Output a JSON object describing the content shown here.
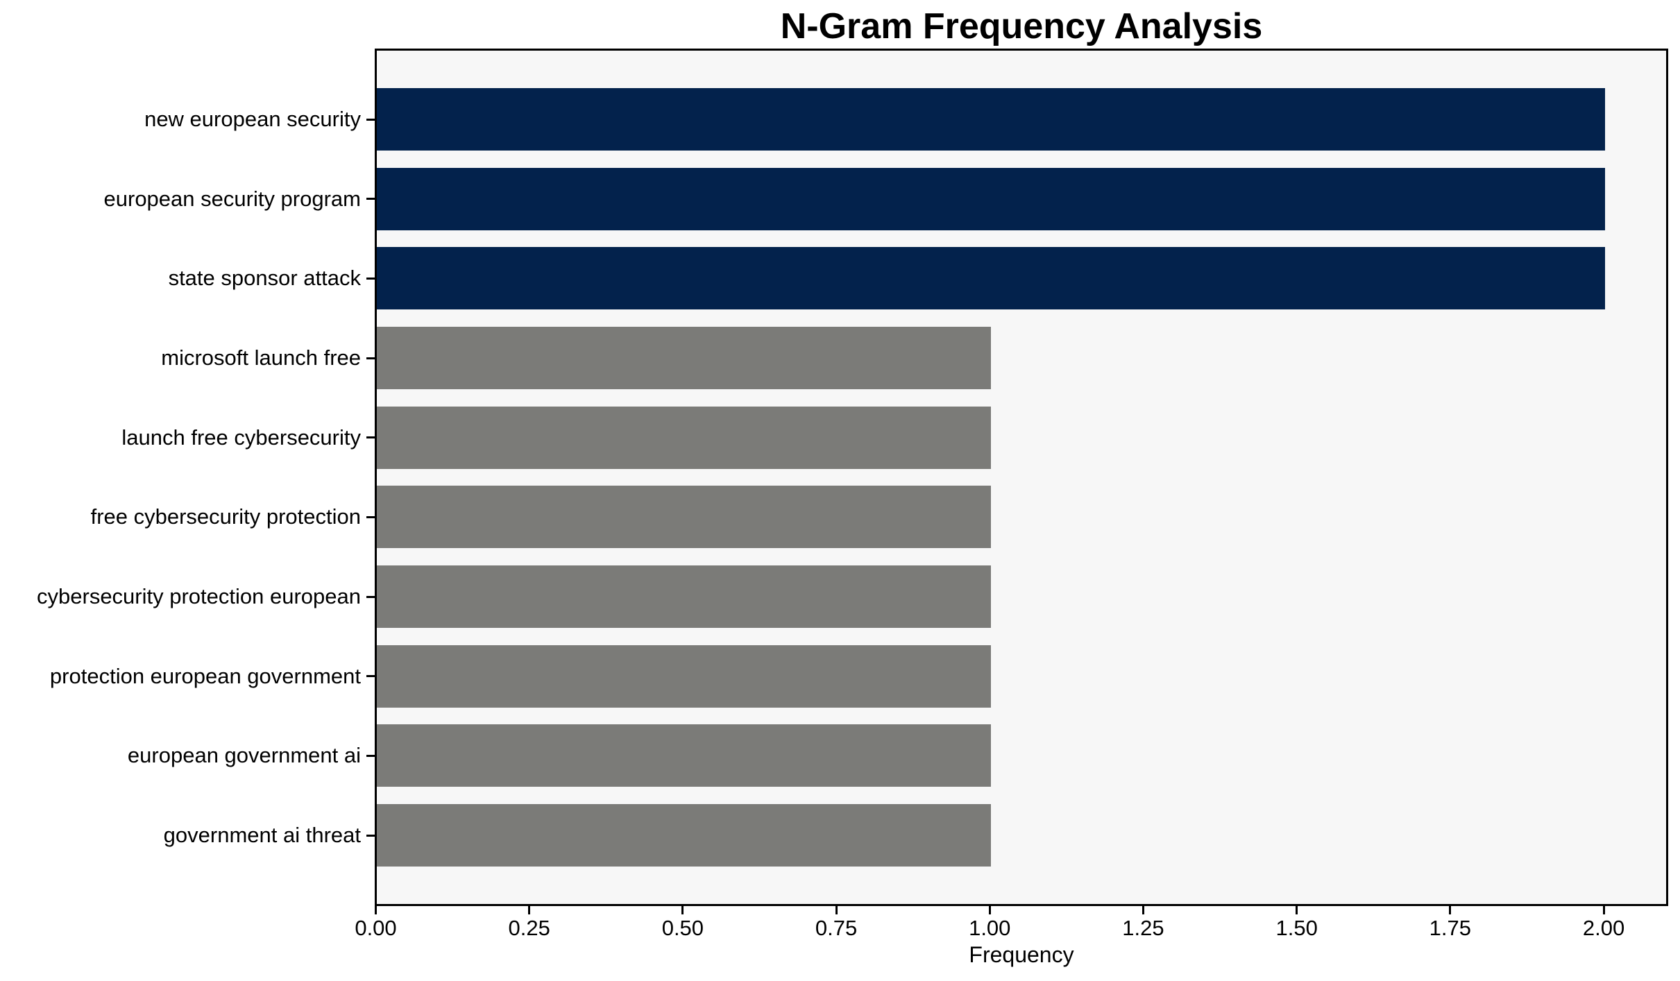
{
  "chart_data": {
    "type": "bar",
    "orientation": "horizontal",
    "title": "N-Gram Frequency Analysis",
    "xlabel": "Frequency",
    "ylabel": "",
    "categories": [
      "new european security",
      "european security program",
      "state sponsor attack",
      "microsoft launch free",
      "launch free cybersecurity",
      "free cybersecurity protection",
      "cybersecurity protection european",
      "protection european government",
      "european government ai",
      "government ai threat"
    ],
    "values": [
      2,
      2,
      2,
      1,
      1,
      1,
      1,
      1,
      1,
      1
    ],
    "bar_colors": [
      "#03224c",
      "#03224c",
      "#03224c",
      "#7b7b78",
      "#7b7b78",
      "#7b7b78",
      "#7b7b78",
      "#7b7b78",
      "#7b7b78",
      "#7b7b78"
    ],
    "xlim": [
      0,
      2.1
    ],
    "xticks": [
      0.0,
      0.25,
      0.5,
      0.75,
      1.0,
      1.25,
      1.5,
      1.75,
      2.0
    ],
    "xtick_labels": [
      "0.00",
      "0.25",
      "0.50",
      "0.75",
      "1.00",
      "1.25",
      "1.50",
      "1.75",
      "2.00"
    ],
    "grid": false,
    "legend": null,
    "colors": {
      "highlight": "#03224c",
      "default": "#7b7b78",
      "plot_background": "#f7f7f7",
      "figure_background": "#ffffff",
      "spine": "#000000",
      "text": "#000000"
    }
  }
}
